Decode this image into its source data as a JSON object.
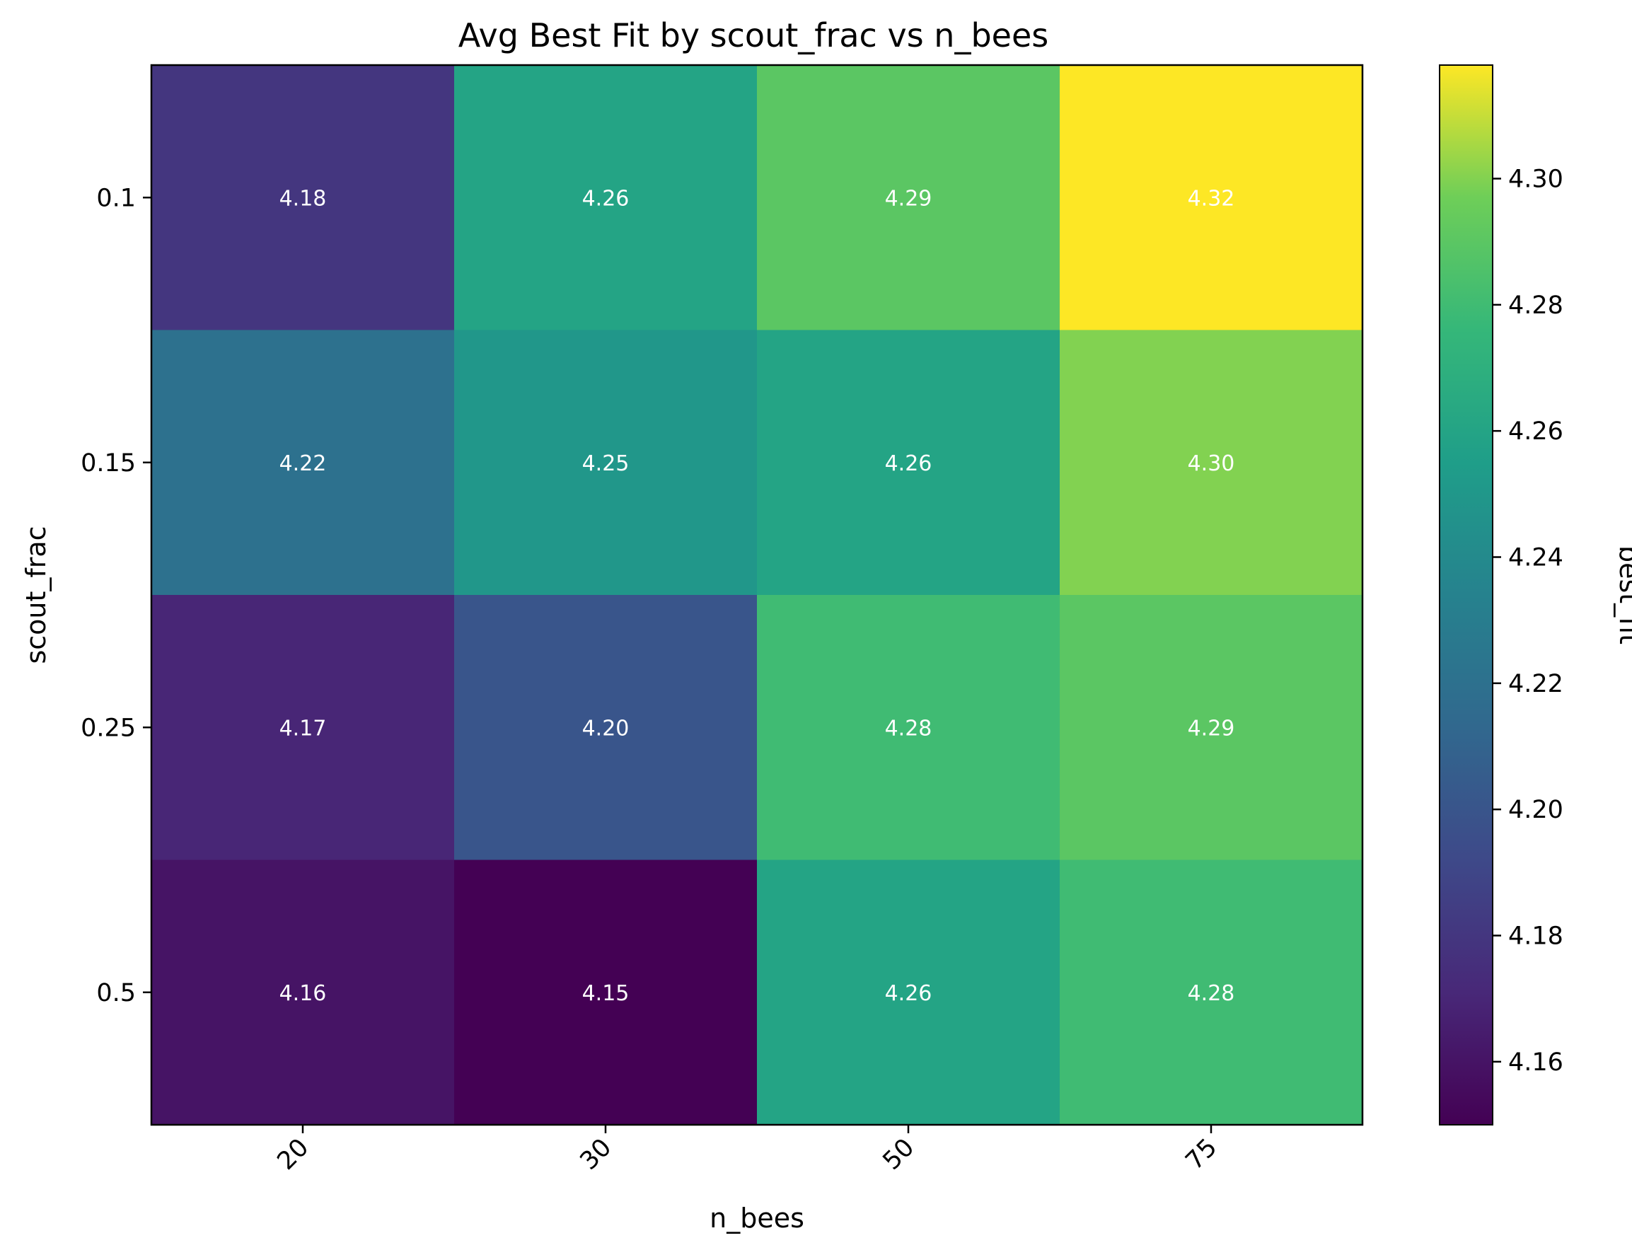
{
  "chart_data": {
    "type": "heatmap",
    "title": "Avg Best Fit by scout_frac vs n_bees",
    "xlabel": "n_bees",
    "ylabel": "scout_frac",
    "x_categories": [
      "20",
      "30",
      "50",
      "75"
    ],
    "y_categories": [
      "0.1",
      "0.15",
      "0.25",
      "0.5"
    ],
    "values": [
      [
        4.18,
        4.26,
        4.29,
        4.32
      ],
      [
        4.22,
        4.25,
        4.26,
        4.3
      ],
      [
        4.17,
        4.2,
        4.28,
        4.29
      ],
      [
        4.16,
        4.15,
        4.26,
        4.28
      ]
    ],
    "cell_labels": [
      [
        "4.18",
        "4.26",
        "4.29",
        "4.32"
      ],
      [
        "4.22",
        "4.25",
        "4.26",
        "4.30"
      ],
      [
        "4.17",
        "4.20",
        "4.28",
        "4.29"
      ],
      [
        "4.16",
        "4.15",
        "4.26",
        "4.28"
      ]
    ],
    "colormap": "viridis",
    "colorbar": {
      "label": "best_fit",
      "vmin": 4.15,
      "vmax": 4.318,
      "ticks": [
        4.16,
        4.18,
        4.2,
        4.22,
        4.24,
        4.26,
        4.28,
        4.3
      ],
      "tick_labels": [
        "4.16",
        "4.18",
        "4.20",
        "4.22",
        "4.24",
        "4.26",
        "4.28",
        "4.30"
      ]
    },
    "xtick_rotation": 45,
    "grid": false
  }
}
